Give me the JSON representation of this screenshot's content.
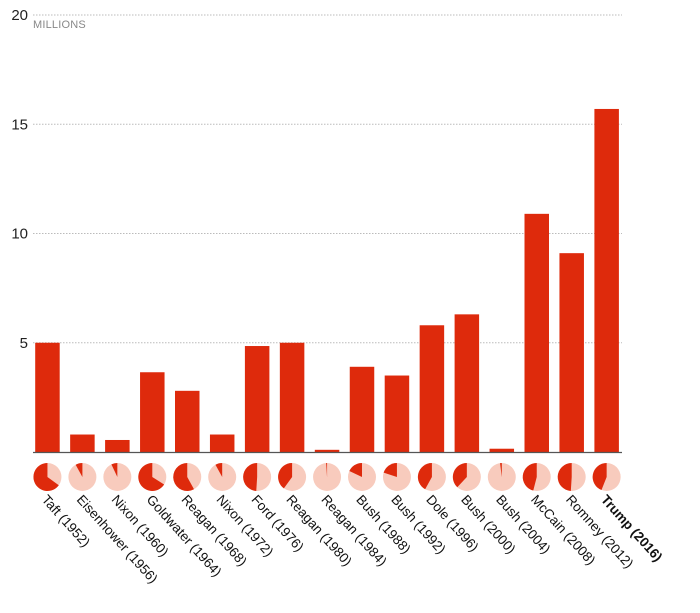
{
  "chart_data": {
    "type": "bar",
    "unit_label": "MILLIONS",
    "ylim": [
      0,
      20
    ],
    "y_ticks": [
      "20",
      "15",
      "10",
      "5"
    ],
    "y_tick_values": [
      20,
      15,
      10,
      5
    ],
    "grid": true,
    "categories": [
      "Taft (1952)",
      "Eisenhower (1956)",
      "Nixon (1960)",
      "Goldwater (1964)",
      "Reagan (1968)",
      "Nixon (1972)",
      "Ford (1976)",
      "Reagan (1980)",
      "Reagan (1984)",
      "Bush (1988)",
      "Bush (1992)",
      "Dole (1996)",
      "Bush (2000)",
      "Bush (2004)",
      "McCain (2008)",
      "Romney (2012)",
      "Trump (2016)"
    ],
    "values": [
      5.0,
      0.8,
      0.55,
      3.65,
      2.8,
      0.8,
      4.85,
      5.0,
      0.1,
      3.9,
      3.5,
      5.8,
      6.3,
      0.15,
      10.9,
      9.1,
      15.7
    ],
    "pie_share": [
      0.65,
      0.08,
      0.07,
      0.66,
      0.58,
      0.08,
      0.49,
      0.4,
      0.01,
      0.18,
      0.2,
      0.42,
      0.38,
      0.02,
      0.46,
      0.49,
      0.44
    ],
    "highlight": "Trump (2016)",
    "colors": {
      "bar": "#de2a0c",
      "pie_fill": "#de2a0c",
      "pie_bg": "#f8cbbd",
      "grid": "#bbbbbb",
      "axis": "#555555"
    }
  }
}
